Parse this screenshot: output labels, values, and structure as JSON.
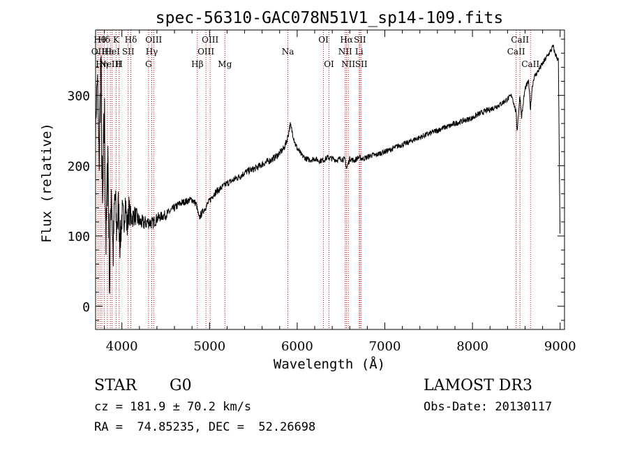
{
  "chart_data": {
    "type": "line",
    "title": "spec-56310-GAC078N51V1_sp14-109.fits",
    "xlabel": "Wavelength (Å)",
    "ylabel": "Flux (relative)",
    "xlim": [
      3700,
      9050
    ],
    "ylim": [
      -33,
      393
    ],
    "x_ticks": [
      {
        "value": 4000,
        "label": "4000"
      },
      {
        "value": 5000,
        "label": "5000"
      },
      {
        "value": 6000,
        "label": "6000"
      },
      {
        "value": 7000,
        "label": "7000"
      },
      {
        "value": 8000,
        "label": "8000"
      },
      {
        "value": 9000,
        "label": "9000"
      }
    ],
    "y_ticks": [
      {
        "value": 0,
        "label": "0"
      },
      {
        "value": 100,
        "label": "100"
      },
      {
        "value": 200,
        "label": "200"
      },
      {
        "value": 300,
        "label": "300"
      }
    ],
    "line_color": "#000000",
    "marker_color": "#cc0000",
    "series": [
      {
        "name": "flux",
        "x": [
          3700,
          3720,
          3740,
          3760,
          3780,
          3800,
          3820,
          3840,
          3860,
          3880,
          3900,
          3920,
          3940,
          3960,
          3980,
          4000,
          4020,
          4040,
          4060,
          4080,
          4100,
          4150,
          4200,
          4250,
          4300,
          4350,
          4400,
          4450,
          4500,
          4550,
          4600,
          4650,
          4700,
          4750,
          4800,
          4850,
          4880,
          4900,
          4950,
          5000,
          5050,
          5100,
          5150,
          5200,
          5250,
          5300,
          5350,
          5400,
          5450,
          5500,
          5550,
          5600,
          5650,
          5700,
          5750,
          5800,
          5850,
          5880,
          5900,
          5920,
          5950,
          5980,
          6000,
          6050,
          6100,
          6150,
          6200,
          6250,
          6300,
          6350,
          6400,
          6450,
          6500,
          6550,
          6562,
          6600,
          6650,
          6700,
          6750,
          6800,
          6850,
          6900,
          6950,
          7000,
          7050,
          7100,
          7150,
          7200,
          7250,
          7300,
          7350,
          7400,
          7450,
          7500,
          7550,
          7600,
          7650,
          7700,
          7750,
          7800,
          7850,
          7900,
          7950,
          8000,
          8050,
          8100,
          8150,
          8200,
          8250,
          8300,
          8350,
          8400,
          8450,
          8498,
          8510,
          8542,
          8560,
          8600,
          8640,
          8662,
          8680,
          8700,
          8750,
          8800,
          8850,
          8900,
          8920,
          8940,
          8960,
          8980,
          9000
        ],
        "y": [
          250,
          330,
          200,
          350,
          120,
          280,
          80,
          230,
          30,
          180,
          70,
          160,
          110,
          140,
          90,
          130,
          120,
          150,
          110,
          140,
          125,
          130,
          120,
          118,
          120,
          118,
          125,
          128,
          130,
          135,
          140,
          145,
          148,
          150,
          152,
          145,
          125,
          130,
          140,
          150,
          160,
          165,
          170,
          175,
          178,
          182,
          185,
          190,
          193,
          195,
          198,
          202,
          205,
          208,
          212,
          218,
          225,
          235,
          245,
          258,
          245,
          230,
          225,
          215,
          210,
          208,
          210,
          207,
          208,
          212,
          210,
          208,
          210,
          208,
          195,
          210,
          207,
          212,
          210,
          212,
          215,
          215,
          218,
          220,
          222,
          225,
          228,
          230,
          232,
          235,
          238,
          240,
          243,
          245,
          248,
          250,
          253,
          255,
          257,
          260,
          262,
          264,
          266,
          268,
          272,
          275,
          278,
          280,
          283,
          286,
          290,
          295,
          300,
          275,
          250,
          300,
          270,
          310,
          320,
          280,
          310,
          325,
          335,
          345,
          355,
          365,
          370,
          360,
          355,
          350,
          90
        ],
        "noise": [
          15,
          30,
          35,
          60,
          70,
          60,
          55,
          50,
          45,
          40,
          38,
          36,
          34,
          32,
          30,
          28,
          26,
          24,
          22,
          20,
          18,
          14,
          12,
          11,
          10,
          9,
          8,
          7,
          7,
          6,
          6,
          6,
          5,
          5,
          5,
          5,
          5,
          5,
          5,
          5,
          5,
          5,
          5,
          5,
          5,
          5,
          5,
          5,
          5,
          5,
          5,
          5,
          5,
          5,
          5,
          5,
          5,
          5,
          5,
          5,
          5,
          5,
          5,
          4,
          4,
          4,
          4,
          4,
          4,
          4,
          4,
          4,
          4,
          4,
          4,
          4,
          4,
          4,
          4,
          4,
          4,
          4,
          4,
          4,
          4,
          4,
          4,
          4,
          4,
          4,
          4,
          4,
          4,
          4,
          4,
          4,
          4,
          4,
          4,
          4,
          4,
          4,
          4,
          4,
          4,
          4,
          4,
          4,
          4,
          4,
          4,
          4,
          4,
          4,
          4,
          4,
          4,
          4,
          4,
          4,
          4,
          4,
          4,
          4,
          4,
          4,
          4,
          4,
          4,
          4,
          4
        ]
      }
    ],
    "line_markers": [
      {
        "x": 3727,
        "label": "OII",
        "row": 2
      },
      {
        "x": 3750,
        "label": "Hθ",
        "row": 1
      },
      {
        "x": 3771,
        "label": "Hη",
        "row": 3
      },
      {
        "x": 3798,
        "label": "Hδ",
        "row": 1
      },
      {
        "x": 3835,
        "label": "Hε",
        "row": 2
      },
      {
        "x": 3869,
        "label": "NeIII",
        "row": 3
      },
      {
        "x": 3889,
        "label": "HeI",
        "row": 2
      },
      {
        "x": 3934,
        "label": "K",
        "row": 1
      },
      {
        "x": 3969,
        "label": "H",
        "row": 3
      },
      {
        "x": 4072,
        "label": "SII",
        "row": 2
      },
      {
        "x": 4102,
        "label": "Hδ",
        "row": 1
      },
      {
        "x": 4304,
        "label": "G",
        "row": 3
      },
      {
        "x": 4341,
        "label": "Hγ",
        "row": 2
      },
      {
        "x": 4363,
        "label": "OIII",
        "row": 1
      },
      {
        "x": 4861,
        "label": "Hβ",
        "row": 3
      },
      {
        "x": 4959,
        "label": "OIII",
        "row": 2
      },
      {
        "x": 5007,
        "label": "OIII",
        "row": 1
      },
      {
        "x": 5175,
        "label": "Mg",
        "row": 3
      },
      {
        "x": 5894,
        "label": "Na",
        "row": 2
      },
      {
        "x": 6300,
        "label": "OI",
        "row": 1
      },
      {
        "x": 6363,
        "label": "OI",
        "row": 3
      },
      {
        "x": 6548,
        "label": "NII",
        "row": 2
      },
      {
        "x": 6563,
        "label": "Hα",
        "row": 1
      },
      {
        "x": 6583,
        "label": "NII",
        "row": 3
      },
      {
        "x": 6708,
        "label": "Li",
        "row": 2
      },
      {
        "x": 6716,
        "label": "SII",
        "row": 1
      },
      {
        "x": 6731,
        "label": "SII",
        "row": 3
      },
      {
        "x": 8498,
        "label": "CaII",
        "row": 2
      },
      {
        "x": 8542,
        "label": "CaII",
        "row": 1
      },
      {
        "x": 8662,
        "label": "CaII",
        "row": 3
      }
    ]
  },
  "info": {
    "class": "STAR",
    "subclass": "G0",
    "survey": "LAMOST DR3",
    "cz": "cz = 181.9 ± 70.2 km/s",
    "obs_date": "Obs-Date: 20130117",
    "coords": "RA =  74.85235, DEC =  52.26698"
  }
}
